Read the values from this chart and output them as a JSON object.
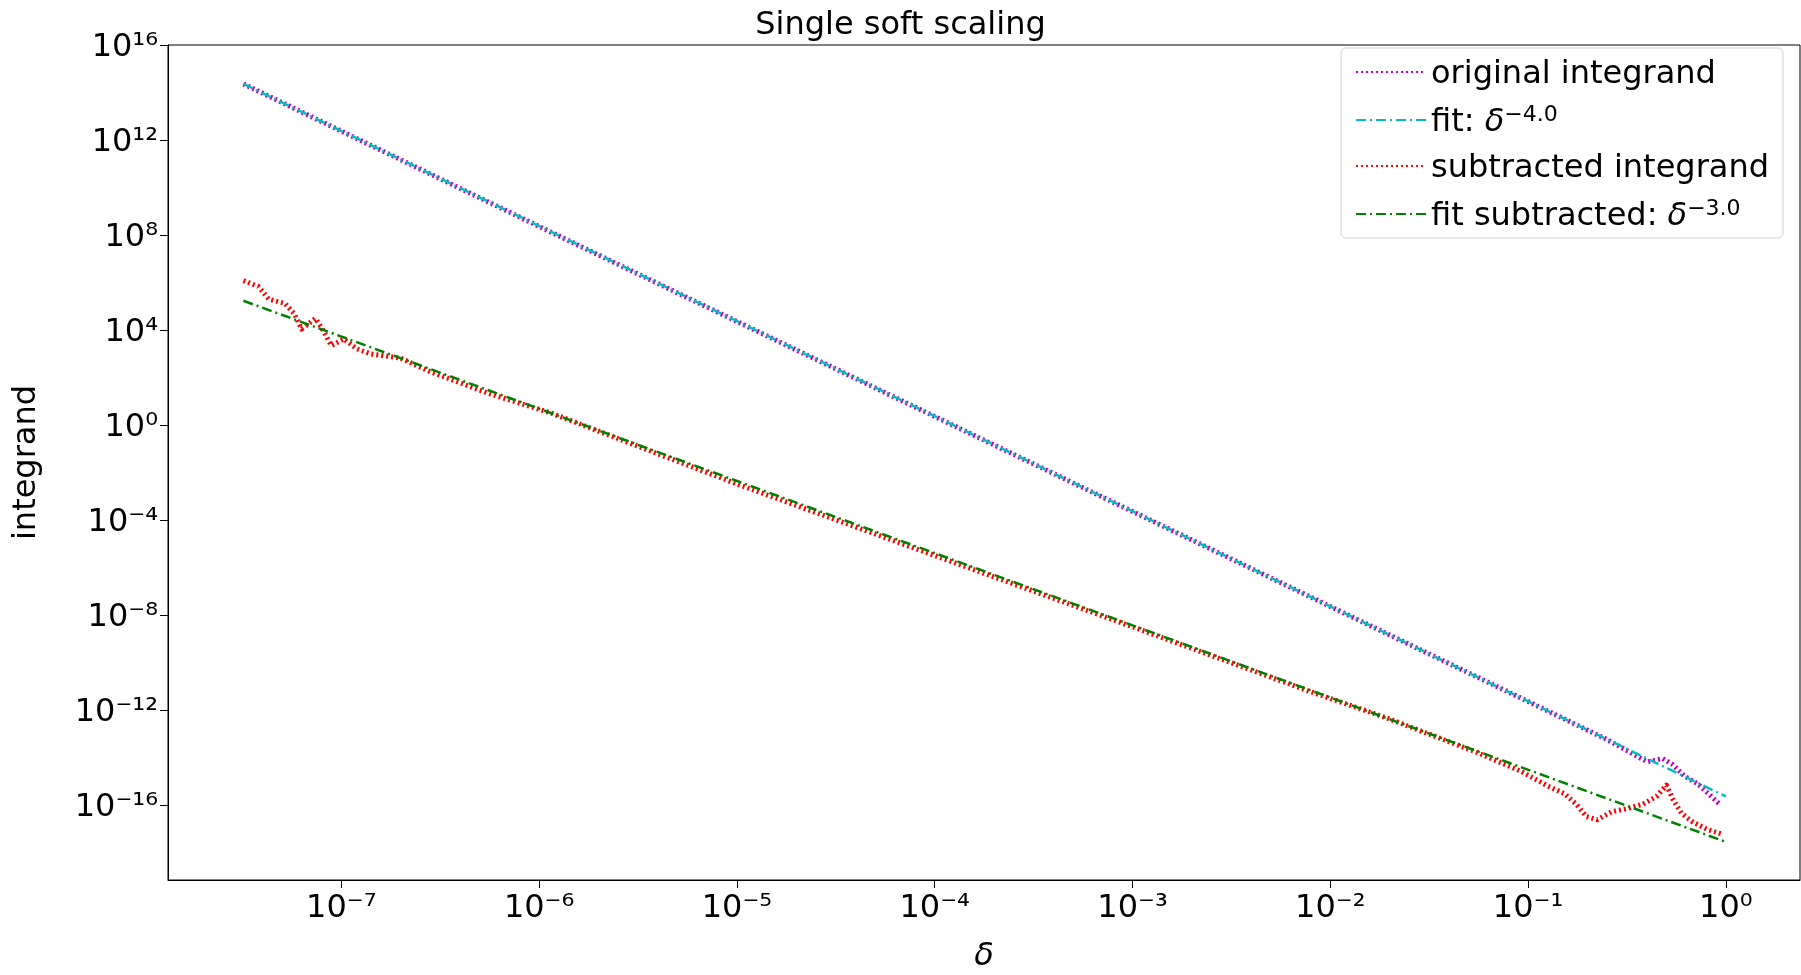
{
  "chart_data": {
    "type": "line",
    "title": "Single soft scaling",
    "xlabel": "δ",
    "ylabel": "integrand",
    "log": "xy",
    "grid": false,
    "legend": "top right",
    "marker": "none",
    "xlim": [
      1.33e-08,
      2.37
    ],
    "ylim": [
      7e-20,
      1e+16
    ],
    "xticks": [
      {
        "value": 1e-07,
        "label": "10⁻⁷"
      },
      {
        "value": 1e-06,
        "label": "10⁻⁶"
      },
      {
        "value": 1e-05,
        "label": "10⁻⁵"
      },
      {
        "value": 0.0001,
        "label": "10⁻⁴"
      },
      {
        "value": 0.001,
        "label": "10⁻³"
      },
      {
        "value": 0.01,
        "label": "10⁻²"
      },
      {
        "value": 0.1,
        "label": "10⁻¹"
      },
      {
        "value": 1,
        "label": "10⁰"
      }
    ],
    "yticks": [
      {
        "value": 1e+16,
        "label": "10¹⁶"
      },
      {
        "value": 1000000000000.0,
        "label": "10¹²"
      },
      {
        "value": 100000000.0,
        "label": "10⁸"
      },
      {
        "value": 10000.0,
        "label": "10⁴"
      },
      {
        "value": 1,
        "label": "10⁰"
      },
      {
        "value": 0.0001,
        "label": "10⁻⁴"
      },
      {
        "value": 1e-08,
        "label": "10⁻⁸"
      },
      {
        "value": 1e-12,
        "label": "10⁻¹²"
      },
      {
        "value": 1e-16,
        "label": "10⁻¹⁶"
      }
    ],
    "series": [
      {
        "name": "original integrand",
        "color": "#bf00bf",
        "line_style": "dotted",
        "x": [
          3.2e-08,
          1e-06,
          0.0001,
          0.01,
          0.1,
          0.25,
          0.4,
          0.48,
          0.54,
          0.62,
          0.72,
          0.94
        ],
        "values": [
          230000000000000.0,
          230000000.0,
          2.3,
          2.3e-08,
          2.3e-12,
          5.8e-14,
          6.6e-15,
          9.1e-15,
          5e-15,
          1.6e-15,
          7.9e-16,
          1e-16
        ]
      },
      {
        "name": "fit: δ$^{−4.0}$",
        "color": "#00bfbf",
        "line_style": "dashed",
        "x": [
          3.2e-08,
          1
        ],
        "values": [
          230000000000000.0,
          2.3e-16
        ]
      },
      {
        "name": "subtracted integrand",
        "color": "#ff0000",
        "line_style": "dotted",
        "x": [
          3.2e-08,
          3.8e-08,
          4.3e-08,
          5.2e-08,
          5.8e-08,
          6.3e-08,
          7.4e-08,
          8.1e-08,
          8.9e-08,
          1.03e-07,
          1.2e-07,
          1.4e-07,
          2e-07,
          2.8e-07,
          5.6e-07,
          1.15e-06,
          1e-05,
          0.0001,
          0.001,
          0.0078,
          0.0195,
          0.0547,
          0.0925,
          0.126,
          0.153,
          0.175,
          0.197,
          0.224,
          0.264,
          0.32,
          0.381,
          0.446,
          0.501,
          0.541,
          0.597,
          0.682,
          0.804,
          0.962
        ],
        "values": [
          1200000.0,
          690000.0,
          200000.0,
          130000.0,
          47000.0,
          11000.0,
          31000.0,
          9500.0,
          2200.0,
          4200.0,
          1600.0,
          1000.0,
          650,
          180,
          21,
          3.2,
          0.0033,
          3.2e-06,
          3.2e-09,
          6.3e-12,
          4.5e-13,
          1.7e-14,
          2.6e-15,
          6.3e-16,
          3e-16,
          1.1e-16,
          3.3e-17,
          2.4e-17,
          5.2e-17,
          7.2e-17,
          1.1e-16,
          2.3e-16,
          6.9e-16,
          1.7e-16,
          4.5e-17,
          1.9e-17,
          9.5e-18,
          5.9e-18
        ]
      },
      {
        "name": "fit subtracted: δ$^{−3.0}$",
        "color": "#008000",
        "line_style": "dashed",
        "x": [
          3.2e-08,
          1
        ],
        "values": [
          170000.0,
          2.8e-18
        ]
      }
    ]
  }
}
